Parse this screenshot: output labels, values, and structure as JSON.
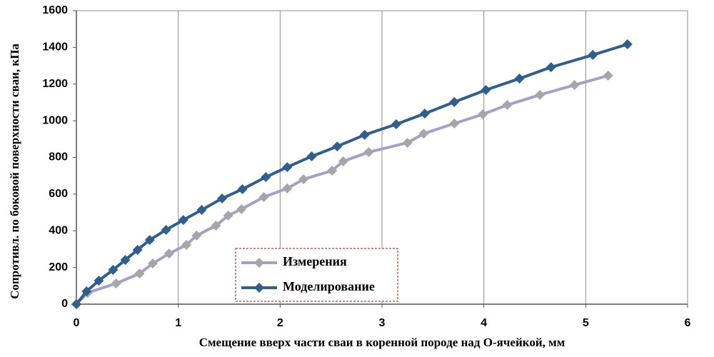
{
  "chart_data": {
    "type": "line",
    "x_label": "Смещение вверх части сваи  в  коренной породе над  О-ячейкой, мм",
    "y_label": "Сопротивл.  по боковой  поверхности сваи, кПа",
    "xlim": [
      0,
      6
    ],
    "xticks": [
      0,
      1,
      2,
      3,
      4,
      5,
      6
    ],
    "ylim": [
      0,
      1600
    ],
    "yticks": [
      0,
      200,
      400,
      600,
      800,
      1000,
      1200,
      1400,
      1600
    ],
    "grid": true,
    "series": [
      {
        "name": "Измерения",
        "color": "#a59fc9",
        "marker_color": "#a6a6a6",
        "x": [
          0,
          0.11,
          0.39,
          0.62,
          0.75,
          0.91,
          1.08,
          1.18,
          1.37,
          1.49,
          1.62,
          1.84,
          2.07,
          2.23,
          2.51,
          2.62,
          2.87,
          3.25,
          3.41,
          3.71,
          3.99,
          4.23,
          4.55,
          4.89,
          5.22
        ],
        "values": [
          0,
          62,
          113,
          167,
          222,
          276,
          323,
          374,
          428,
          483,
          518,
          584,
          631,
          681,
          728,
          779,
          829,
          880,
          930,
          985,
          1035,
          1086,
          1141,
          1195,
          1246
        ]
      },
      {
        "name": "Моделирование",
        "color": "#2e5f8f",
        "marker_color": "#2e5f8f",
        "x": [
          0,
          0.1,
          0.22,
          0.36,
          0.48,
          0.6,
          0.72,
          0.88,
          1.05,
          1.23,
          1.43,
          1.63,
          1.86,
          2.07,
          2.31,
          2.56,
          2.83,
          3.14,
          3.42,
          3.71,
          4.02,
          4.35,
          4.66,
          5.07,
          5.41
        ],
        "values": [
          0,
          70,
          128,
          187,
          241,
          296,
          350,
          405,
          459,
          514,
          576,
          627,
          693,
          747,
          806,
          860,
          923,
          981,
          1039,
          1102,
          1168,
          1230,
          1292,
          1359,
          1417
        ]
      }
    ]
  }
}
